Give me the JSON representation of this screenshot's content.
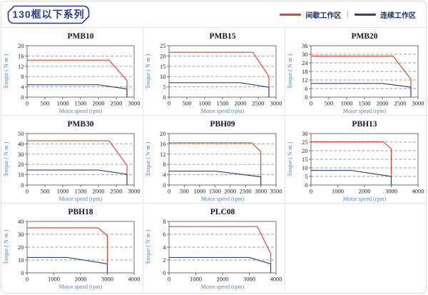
{
  "header": {
    "title": "130框以下系列"
  },
  "legend": {
    "items": [
      {
        "label": "间歇工作区",
        "key": "intermittent"
      },
      {
        "label": "连续工作区",
        "key": "continuous"
      }
    ],
    "separator": "|"
  },
  "colors": {
    "intermittent": "#e2432a",
    "continuous": "#2a4480",
    "badge_border": "#2b3a8f",
    "badge_text": "#2b3a8f",
    "axis_label": "#5b87c5",
    "plot_border": "#6f6f6f",
    "gridline": "#9c9c9c",
    "cell_border": "#e3e5ea"
  },
  "chart_data": [
    {
      "type": "line",
      "title": "PMB10",
      "xlabel": "Motor speed (rpm)",
      "ylabel": "Torque ( N·m )",
      "xlim": [
        0,
        3000
      ],
      "xticks": [
        0,
        500,
        1000,
        1500,
        2000,
        2500,
        3000
      ],
      "ylim": [
        0,
        20
      ],
      "yticks": [
        0,
        4,
        8,
        12,
        16,
        20
      ],
      "grid": "horizontal-dashed",
      "legend_position": "none",
      "series": [
        {
          "name": "间歇工作区",
          "key": "intermittent",
          "points": [
            [
              0,
              14.4
            ],
            [
              2300,
              14.4
            ],
            [
              2800,
              6.5
            ],
            [
              2800,
              0
            ]
          ]
        },
        {
          "name": "连续工作区",
          "key": "continuous",
          "points": [
            [
              0,
              4.8
            ],
            [
              2000,
              4.8
            ],
            [
              2800,
              3.2
            ],
            [
              2800,
              0
            ]
          ]
        }
      ]
    },
    {
      "type": "line",
      "title": "PMB15",
      "xlabel": "Motor speed (rpm)",
      "ylabel": "Torque ( N·m )",
      "xlim": [
        0,
        3000
      ],
      "xticks": [
        0,
        500,
        1000,
        1500,
        2000,
        2500,
        3000
      ],
      "ylim": [
        0,
        25
      ],
      "yticks": [
        0,
        5,
        10,
        15,
        20,
        25
      ],
      "grid": "horizontal-dashed",
      "legend_position": "none",
      "series": [
        {
          "name": "间歇工作区",
          "key": "intermittent",
          "points": [
            [
              0,
              21.8
            ],
            [
              2350,
              21.8
            ],
            [
              2800,
              10
            ],
            [
              2800,
              0
            ]
          ]
        },
        {
          "name": "连续工作区",
          "key": "continuous",
          "points": [
            [
              0,
              7
            ],
            [
              2000,
              7
            ],
            [
              2800,
              4.8
            ],
            [
              2800,
              0
            ]
          ]
        }
      ]
    },
    {
      "type": "line",
      "title": "PMB20",
      "xlabel": "Motor speed (rpm)",
      "ylabel": "Torque ( N·m )",
      "xlim": [
        0,
        3000
      ],
      "xticks": [
        0,
        500,
        1000,
        1500,
        2000,
        2500,
        3000
      ],
      "ylim": [
        0,
        36
      ],
      "yticks": [
        0,
        6,
        12,
        18,
        24,
        30,
        36
      ],
      "grid": "horizontal-dashed",
      "legend_position": "none",
      "series": [
        {
          "name": "间歇工作区",
          "key": "intermittent",
          "points": [
            [
              0,
              28.8
            ],
            [
              2300,
              28.8
            ],
            [
              2800,
              12.5
            ],
            [
              2800,
              0
            ]
          ]
        },
        {
          "name": "连续工作区",
          "key": "continuous",
          "points": [
            [
              0,
              9.6
            ],
            [
              2000,
              9.6
            ],
            [
              2800,
              7
            ],
            [
              2800,
              0
            ]
          ]
        }
      ]
    },
    {
      "type": "line",
      "title": "PMB30",
      "xlabel": "Motor speed (rpm)",
      "ylabel": "Torque ( N·m )",
      "xlim": [
        0,
        3000
      ],
      "xticks": [
        0,
        500,
        1000,
        1500,
        2000,
        2500,
        3000
      ],
      "ylim": [
        0,
        50
      ],
      "yticks": [
        0,
        10,
        20,
        30,
        40,
        50
      ],
      "grid": "horizontal-dashed",
      "legend_position": "none",
      "series": [
        {
          "name": "间歇工作区",
          "key": "intermittent",
          "points": [
            [
              0,
              43
            ],
            [
              2300,
              43
            ],
            [
              2800,
              19
            ],
            [
              2800,
              0
            ]
          ]
        },
        {
          "name": "连续工作区",
          "key": "continuous",
          "points": [
            [
              0,
              14.5
            ],
            [
              2000,
              14.5
            ],
            [
              2800,
              10.5
            ],
            [
              2800,
              0
            ]
          ]
        }
      ]
    },
    {
      "type": "line",
      "title": "PBH09",
      "xlabel": "Motor speed (rpm)",
      "ylabel": "Torque ( N·m )",
      "xlim": [
        0,
        3500
      ],
      "xticks": [
        0,
        500,
        1000,
        1500,
        2000,
        2500,
        3000,
        3500
      ],
      "ylim": [
        0,
        20
      ],
      "yticks": [
        0,
        4,
        8,
        12,
        16,
        20
      ],
      "grid": "horizontal-dashed",
      "legend_position": "none",
      "series": [
        {
          "name": "间歇工作区",
          "key": "intermittent",
          "points": [
            [
              0,
              16.4
            ],
            [
              2700,
              16.4
            ],
            [
              3000,
              13
            ],
            [
              3000,
              0
            ]
          ]
        },
        {
          "name": "连续工作区",
          "key": "continuous",
          "points": [
            [
              0,
              5.4
            ],
            [
              1500,
              5.4
            ],
            [
              3000,
              3.2
            ],
            [
              3000,
              0
            ]
          ]
        }
      ]
    },
    {
      "type": "line",
      "title": "PBH13",
      "xlabel": "Motor speed (rpm)",
      "ylabel": "Torque ( N·m )",
      "xlim": [
        0,
        4000
      ],
      "xticks": [
        0,
        1000,
        2000,
        3000,
        4000
      ],
      "ylim": [
        0,
        30
      ],
      "yticks": [
        0,
        5,
        10,
        15,
        20,
        25,
        30
      ],
      "grid": "horizontal-dashed",
      "legend_position": "none",
      "series": [
        {
          "name": "间歇工作区",
          "key": "intermittent",
          "points": [
            [
              0,
              25.2
            ],
            [
              2700,
              25.2
            ],
            [
              3000,
              21
            ],
            [
              3000,
              0
            ]
          ]
        },
        {
          "name": "连续工作区",
          "key": "continuous",
          "points": [
            [
              0,
              8.5
            ],
            [
              1500,
              8.5
            ],
            [
              3000,
              5
            ],
            [
              3000,
              0
            ]
          ]
        }
      ]
    },
    {
      "type": "line",
      "title": "PBH18",
      "xlabel": "Motor speed (rpm)",
      "ylabel": "Torque ( N·m )",
      "xlim": [
        0,
        4000
      ],
      "xticks": [
        0,
        1000,
        2000,
        3000,
        4000
      ],
      "ylim": [
        0,
        40
      ],
      "yticks": [
        0,
        10,
        20,
        30,
        40
      ],
      "grid": "horizontal-dashed",
      "legend_position": "none",
      "series": [
        {
          "name": "间歇工作区",
          "key": "intermittent",
          "points": [
            [
              0,
              35
            ],
            [
              2650,
              35
            ],
            [
              3000,
              29
            ],
            [
              3000,
              0
            ]
          ]
        },
        {
          "name": "连续工作区",
          "key": "continuous",
          "points": [
            [
              0,
              12
            ],
            [
              1500,
              12
            ],
            [
              3000,
              7
            ],
            [
              3000,
              0
            ]
          ]
        }
      ]
    },
    {
      "type": "line",
      "title": "PLC08",
      "xlabel": "Motor speed (rpm)",
      "ylabel": "Torque ( N·m )",
      "xlim": [
        0,
        4000
      ],
      "xticks": [
        0,
        1000,
        2000,
        3000,
        4000
      ],
      "ylim": [
        0,
        8
      ],
      "yticks": [
        0,
        2,
        4,
        6,
        8
      ],
      "grid": "horizontal-dashed",
      "legend_position": "none",
      "series": [
        {
          "name": "间歇工作区",
          "key": "intermittent",
          "points": [
            [
              0,
              7.2
            ],
            [
              3300,
              7.2
            ],
            [
              3800,
              3
            ],
            [
              3800,
              0
            ]
          ]
        },
        {
          "name": "连续工作区",
          "key": "continuous",
          "points": [
            [
              0,
              2.4
            ],
            [
              3000,
              2.4
            ],
            [
              3800,
              1.4
            ],
            [
              3800,
              0
            ]
          ]
        }
      ]
    }
  ]
}
